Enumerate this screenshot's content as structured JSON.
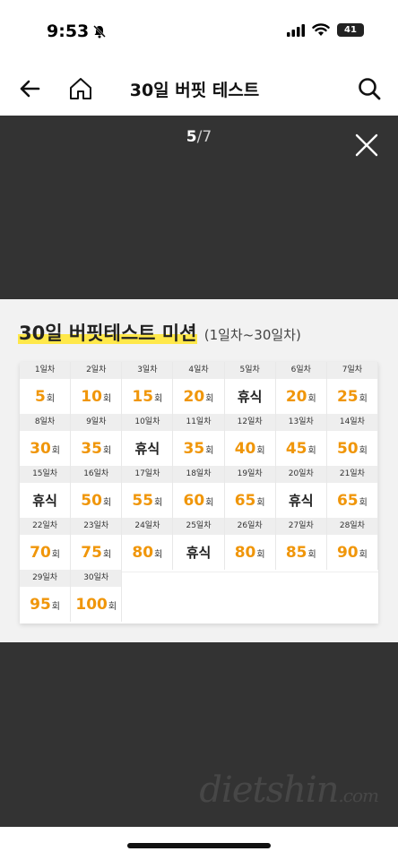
{
  "status_bar": {
    "time": "9:53",
    "battery": "41"
  },
  "nav": {
    "title": "30일 버핏 테스트"
  },
  "viewer": {
    "page_current": "5",
    "page_separator": "/",
    "page_total": "7"
  },
  "mission": {
    "title": "30일 버핏테스트 미션",
    "subtitle": "(1일차~30일차)",
    "unit": "회",
    "days": [
      {
        "label": "1일차",
        "value": "5",
        "rest": false
      },
      {
        "label": "2일차",
        "value": "10",
        "rest": false
      },
      {
        "label": "3일차",
        "value": "15",
        "rest": false
      },
      {
        "label": "4일차",
        "value": "20",
        "rest": false
      },
      {
        "label": "5일차",
        "value": "휴식",
        "rest": true
      },
      {
        "label": "6일차",
        "value": "20",
        "rest": false
      },
      {
        "label": "7일차",
        "value": "25",
        "rest": false
      },
      {
        "label": "8일차",
        "value": "30",
        "rest": false
      },
      {
        "label": "9일차",
        "value": "35",
        "rest": false
      },
      {
        "label": "10일차",
        "value": "휴식",
        "rest": true
      },
      {
        "label": "11일차",
        "value": "35",
        "rest": false
      },
      {
        "label": "12일차",
        "value": "40",
        "rest": false
      },
      {
        "label": "13일차",
        "value": "45",
        "rest": false
      },
      {
        "label": "14일차",
        "value": "50",
        "rest": false
      },
      {
        "label": "15일차",
        "value": "휴식",
        "rest": true
      },
      {
        "label": "16일차",
        "value": "50",
        "rest": false
      },
      {
        "label": "17일차",
        "value": "55",
        "rest": false
      },
      {
        "label": "18일차",
        "value": "60",
        "rest": false
      },
      {
        "label": "19일차",
        "value": "65",
        "rest": false
      },
      {
        "label": "20일차",
        "value": "휴식",
        "rest": true
      },
      {
        "label": "21일차",
        "value": "65",
        "rest": false
      },
      {
        "label": "22일차",
        "value": "70",
        "rest": false
      },
      {
        "label": "23일차",
        "value": "75",
        "rest": false
      },
      {
        "label": "24일차",
        "value": "80",
        "rest": false
      },
      {
        "label": "25일차",
        "value": "휴식",
        "rest": true
      },
      {
        "label": "26일차",
        "value": "80",
        "rest": false
      },
      {
        "label": "27일차",
        "value": "85",
        "rest": false
      },
      {
        "label": "28일차",
        "value": "90",
        "rest": false
      },
      {
        "label": "29일차",
        "value": "95",
        "rest": false
      },
      {
        "label": "30일차",
        "value": "100",
        "rest": false
      }
    ]
  },
  "watermark": {
    "text": "dietshin",
    "suffix": ".com"
  },
  "colors": {
    "accent": "#f0960a",
    "highlight": "#ffe84a",
    "viewer_bg": "#333333"
  }
}
